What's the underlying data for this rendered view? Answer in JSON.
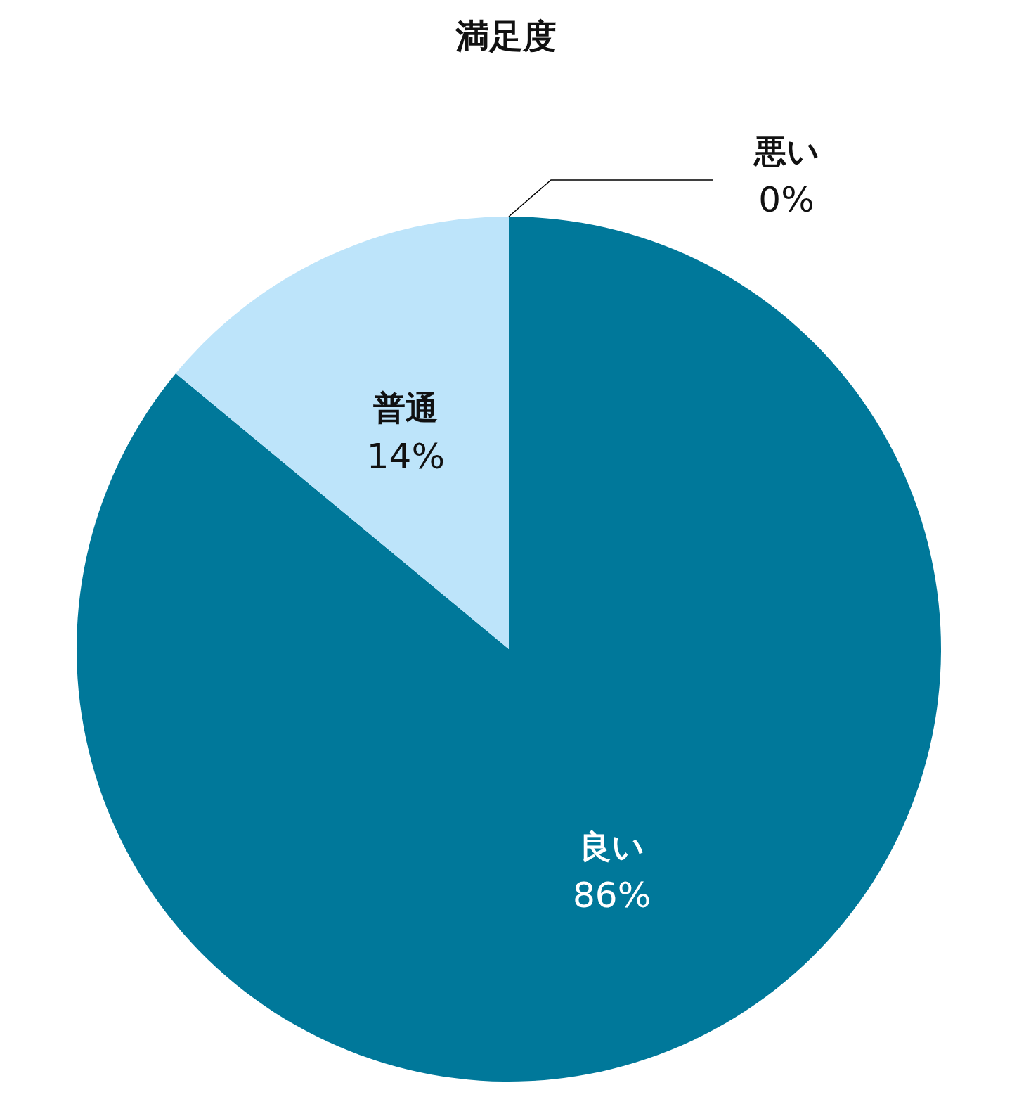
{
  "chart_data": {
    "type": "pie",
    "title": "満足度",
    "categories": [
      "良い",
      "普通",
      "悪い"
    ],
    "values": [
      86,
      14,
      0
    ],
    "value_labels": [
      "86%",
      "14%",
      "0%"
    ],
    "colors": [
      "#00789a",
      "#bde4fa",
      "#6fa8c0"
    ],
    "legend": false
  }
}
